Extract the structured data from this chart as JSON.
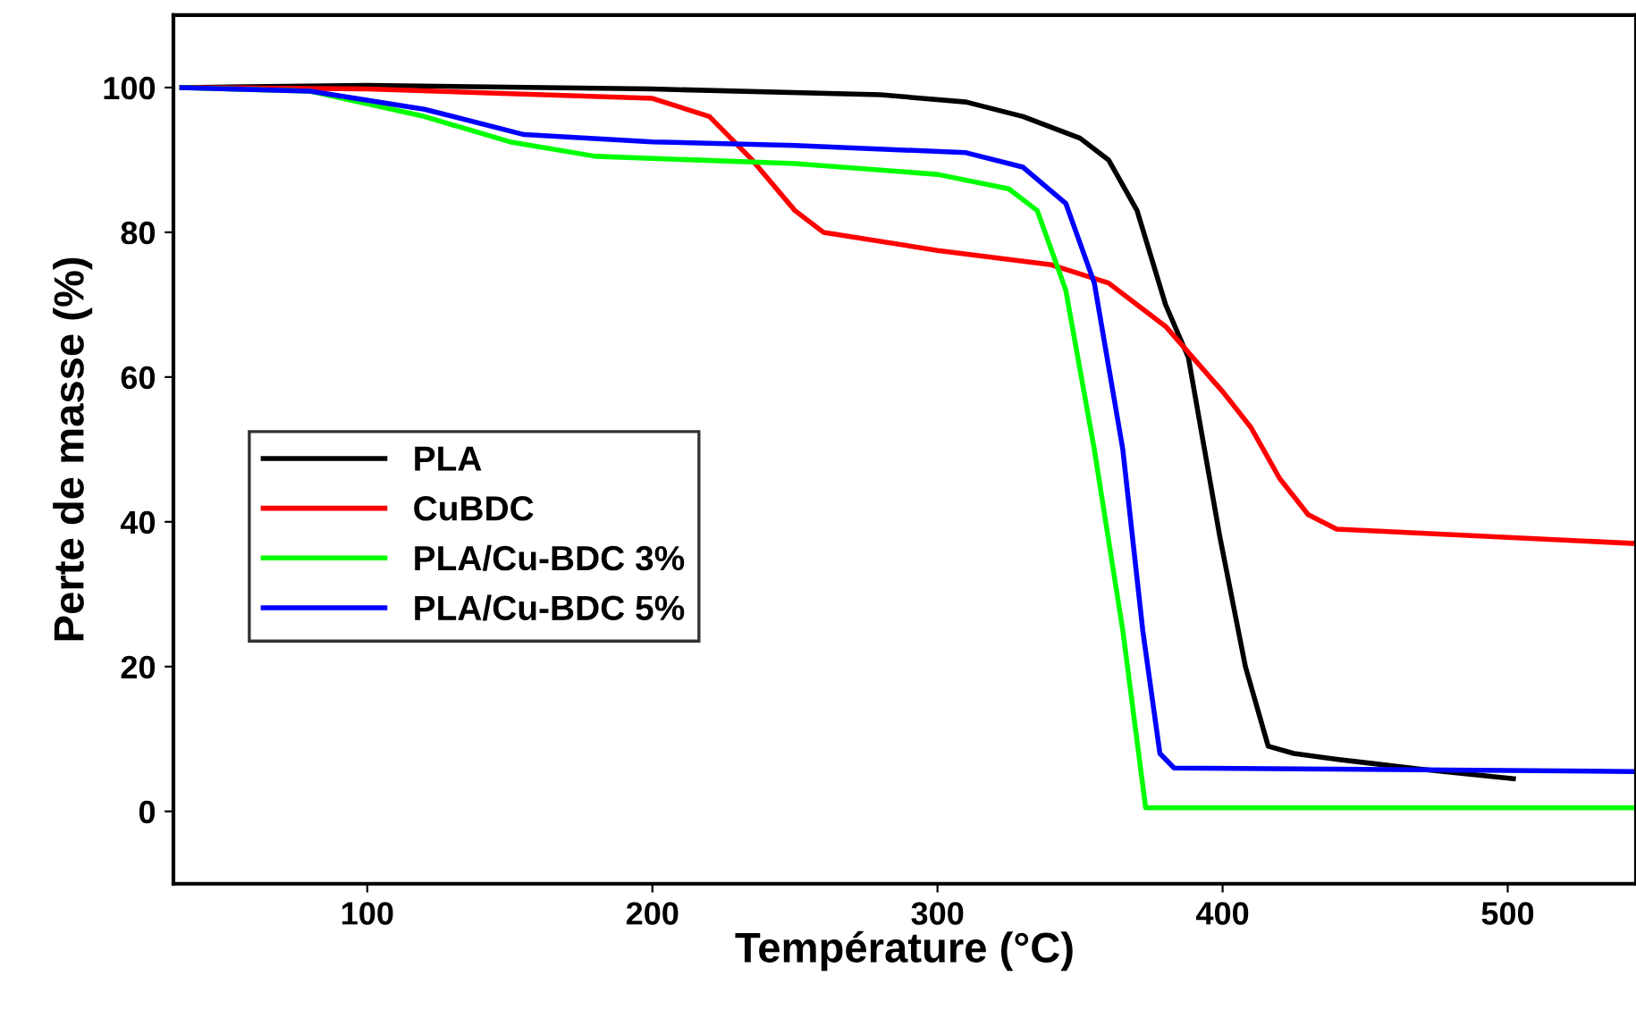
{
  "chart_data": {
    "type": "line",
    "xlabel": "Température (°C)",
    "ylabel": "Perte de masse (%)",
    "xlim": [
      32,
      545
    ],
    "ylim": [
      -10,
      110
    ],
    "xticks": [
      100,
      200,
      300,
      400,
      500
    ],
    "yticks": [
      0,
      20,
      40,
      60,
      80,
      100
    ],
    "grid": false,
    "legend": "left",
    "marker": "none",
    "line_style": "solid",
    "series": [
      {
        "name": "PLA",
        "color": "#000000",
        "x": [
          35,
          100,
          200,
          280,
          310,
          330,
          350,
          360,
          370,
          380,
          388,
          399,
          408,
          416,
          425,
          440,
          470,
          502
        ],
        "values": [
          100,
          100.3,
          99.8,
          99,
          98,
          96,
          93,
          90,
          83,
          70,
          62.7,
          38,
          20,
          9,
          8,
          7.2,
          5.8,
          4.5
        ]
      },
      {
        "name": "CuBDC",
        "color": "#ff0000",
        "x": [
          35,
          100,
          200,
          220,
          235,
          250,
          260,
          300,
          340,
          360,
          380,
          400,
          410,
          420,
          430,
          440,
          450,
          545
        ],
        "values": [
          100,
          99.8,
          98.5,
          96,
          90,
          83,
          80,
          77.5,
          75.5,
          73,
          67,
          58,
          53,
          46,
          41,
          39,
          38.8,
          37
        ]
      },
      {
        "name": "PLA/Cu-BDC 3%",
        "color": "#00ff00",
        "x": [
          35,
          80,
          120,
          150,
          180,
          250,
          300,
          325,
          335,
          345,
          355,
          365,
          373,
          545
        ],
        "values": [
          100,
          99.5,
          96,
          92.5,
          90.5,
          89.5,
          88,
          86,
          83,
          72,
          50,
          25,
          0.5,
          0.5
        ]
      },
      {
        "name": "PLA/Cu-BDC 5%",
        "color": "#0000ff",
        "x": [
          35,
          80,
          120,
          155,
          200,
          250,
          310,
          330,
          345,
          355,
          365,
          372,
          378,
          383,
          545
        ],
        "values": [
          100,
          99.5,
          97,
          93.5,
          92.5,
          92,
          91,
          89,
          84,
          73,
          50,
          25,
          8,
          6,
          5.5
        ]
      }
    ]
  }
}
